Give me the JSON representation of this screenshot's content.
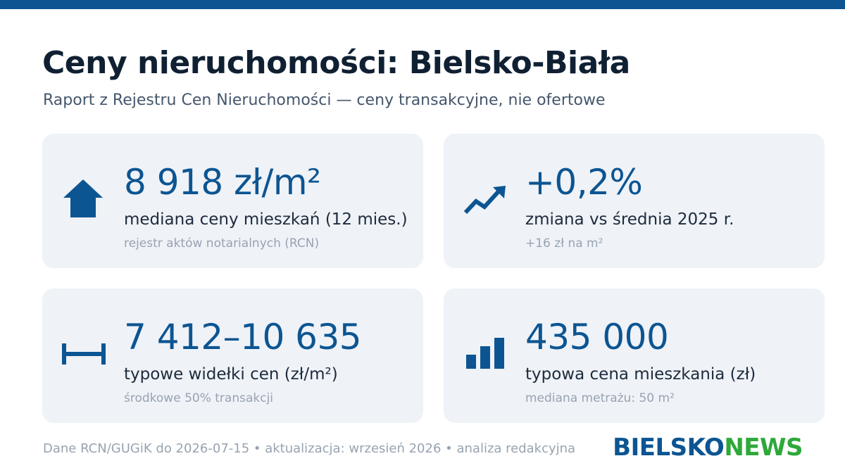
{
  "colors": {
    "accent": "#0c5592",
    "brand_green": "#2fa83a",
    "card_background": "#eff2f7",
    "muted_text": "#98a3b0"
  },
  "header": {
    "title": "Ceny nieruchomości: Bielsko-Biała",
    "subtitle": "Raport z Rejestru Cen Nieruchomości — ceny transakcyjne, nie ofertowe"
  },
  "cards": [
    {
      "icon": "house-icon",
      "value": "8 918 zł/m²",
      "label": "mediana ceny mieszkań (12 mies.)",
      "note": "rejestr aktów notarialnych (RCN)"
    },
    {
      "icon": "trend-up-icon",
      "value": "+0,2%",
      "label": "zmiana vs średnia 2025 r.",
      "note": "+16 zł na m²"
    },
    {
      "icon": "range-icon",
      "value": "7 412–10 635",
      "label": "typowe widełki cen (zł/m²)",
      "note": "środkowe 50% transakcji"
    },
    {
      "icon": "bar-chart-icon",
      "value": "435 000",
      "label": "typowa cena mieszkania (zł)",
      "note": "mediana metrażu: 50 m²"
    }
  ],
  "footer": {
    "text": "Dane RCN/GUGiK do 2026-07-15 • aktualizacja: wrzesień 2026 • analiza redakcyjna"
  },
  "logo": {
    "part1": "BIELSKO",
    "part2": "NEWS"
  }
}
